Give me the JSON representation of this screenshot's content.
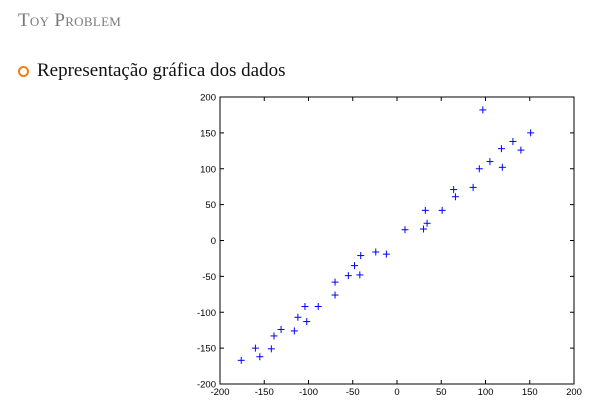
{
  "slide": {
    "title": "Toy Problem",
    "bullet": "Representação gráfica dos dados"
  },
  "colors": {
    "accent": "#e8850c",
    "marker": "#0000ff",
    "title": "#7a7a7a"
  },
  "chart_data": {
    "type": "scatter",
    "marker": "+",
    "title": "",
    "xlabel": "",
    "ylabel": "",
    "xlim": [
      -200,
      200
    ],
    "ylim": [
      -200,
      200
    ],
    "xticks": [
      -200,
      -150,
      -100,
      -50,
      0,
      50,
      100,
      150,
      200
    ],
    "yticks": [
      -200,
      -150,
      -100,
      -50,
      0,
      50,
      100,
      150,
      200
    ],
    "grid": false,
    "legend": false,
    "series": [
      {
        "points": [
          [
            -176,
            -167
          ],
          [
            -160,
            -150
          ],
          [
            -155,
            -162
          ],
          [
            -142,
            -151
          ],
          [
            -139,
            -133
          ],
          [
            -131,
            -124
          ],
          [
            -116,
            -126
          ],
          [
            -112,
            -107
          ],
          [
            -104,
            -92
          ],
          [
            -102,
            -113
          ],
          [
            -89,
            -92
          ],
          [
            -70,
            -58
          ],
          [
            -70,
            -76
          ],
          [
            -55,
            -49
          ],
          [
            -48,
            -35
          ],
          [
            -42,
            -48
          ],
          [
            -41,
            -21
          ],
          [
            -24,
            -16
          ],
          [
            -12,
            -19
          ],
          [
            9,
            15
          ],
          [
            30,
            16
          ],
          [
            32,
            42
          ],
          [
            34,
            24
          ],
          [
            51,
            42
          ],
          [
            64,
            71
          ],
          [
            66,
            61
          ],
          [
            86,
            74
          ],
          [
            93,
            100
          ],
          [
            97,
            182
          ],
          [
            105,
            110
          ],
          [
            118,
            128
          ],
          [
            119,
            102
          ],
          [
            131,
            138
          ],
          [
            140,
            126
          ],
          [
            151,
            150
          ]
        ]
      }
    ]
  }
}
